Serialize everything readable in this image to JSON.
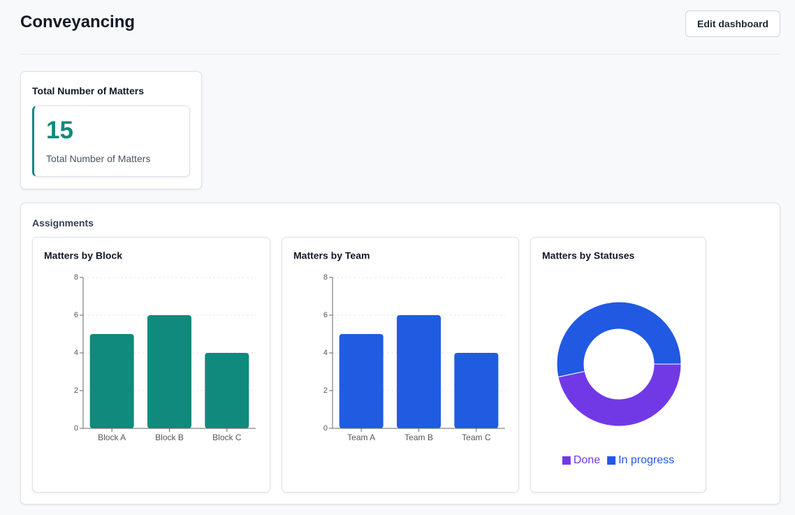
{
  "header": {
    "title": "Conveyancing",
    "button": "Edit dashboard"
  },
  "summary": {
    "title": "Total Number of Matters",
    "value": 15,
    "label": "Total Number of Matters"
  },
  "assignments": {
    "title": "Assignments",
    "charts": [
      {
        "type": "bar",
        "title": "Matters by Block",
        "categories": [
          "Block A",
          "Block B",
          "Block C"
        ],
        "values": [
          5,
          6,
          4
        ],
        "color": "#0f8a7c",
        "ylim": [
          0,
          8
        ],
        "yticks": [
          0,
          2,
          4,
          6,
          8
        ],
        "grid": true
      },
      {
        "type": "bar",
        "title": "Matters by Team",
        "categories": [
          "Team A",
          "Team B",
          "Team C"
        ],
        "values": [
          5,
          6,
          4
        ],
        "color": "#1f5ce2",
        "ylim": [
          0,
          8
        ],
        "yticks": [
          0,
          2,
          4,
          6,
          8
        ],
        "grid": true
      },
      {
        "type": "pie",
        "title": "Matters by Statuses",
        "categories": [
          "Done",
          "In progress"
        ],
        "values": [
          7,
          8
        ],
        "colors": [
          "#7139e6",
          "#2159e3"
        ],
        "donut": true
      }
    ]
  }
}
